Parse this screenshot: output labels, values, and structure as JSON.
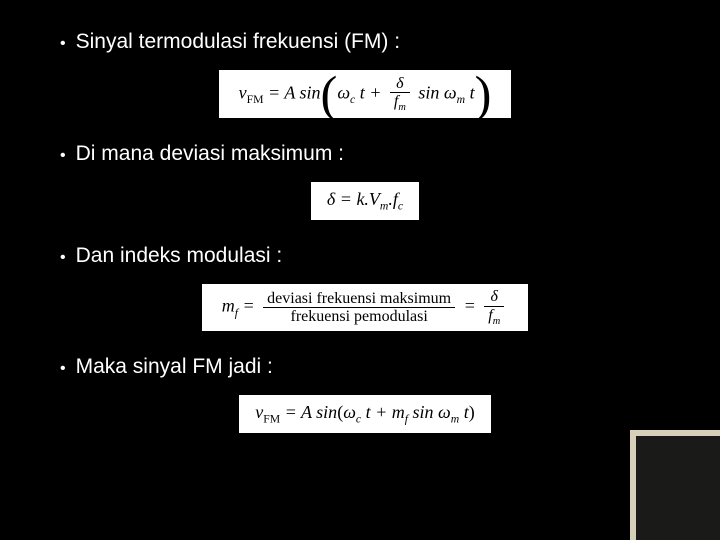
{
  "slide": {
    "background": "#000000",
    "text_color": "#ffffff",
    "bullet_font": "Comic Sans MS",
    "equation_bg": "#ffffff",
    "equation_color": "#000000",
    "bullets": {
      "b1": "Sinyal termodulasi frekuensi (FM) :",
      "b2": "Di mana deviasi maksimum :",
      "b3": "Dan indeks modulasi :",
      "b4": "Maka sinyal FM jadi :"
    },
    "equations": {
      "eq1": {
        "lhs_var": "v",
        "lhs_sub": "FM",
        "eq": " = ",
        "A": "A",
        "sin": " sin",
        "omega_c": "ω",
        "omega_c_sub": "c",
        "t": " t",
        "plus": " + ",
        "delta": "δ",
        "fm_var": "f",
        "fm_sub": "m",
        "sin2": " sin ",
        "omega_m": "ω",
        "omega_m_sub": "m",
        "t2": " t"
      },
      "eq2": {
        "delta": "δ",
        "eq": " = ",
        "k": "k.V",
        "k_sub": "m",
        "dot": ".",
        "f": "f",
        "f_sub": "c"
      },
      "eq3": {
        "m": "m",
        "m_sub": "f",
        "eq": " = ",
        "num_text": "deviasi frekuensi maksimum",
        "den_text": "frekuensi pemodulasi",
        "eq2": " = ",
        "delta": "δ",
        "fm_var": "f",
        "fm_sub": "m"
      },
      "eq4": {
        "lhs_var": "v",
        "lhs_sub": "FM",
        "eq": " = ",
        "A": "A",
        "sin": " sin",
        "omega_c": "ω",
        "omega_c_sub": "c",
        "t": " t",
        "plus": " + ",
        "mf": "m",
        "mf_sub": "f",
        "sin2": " sin ",
        "omega_m": "ω",
        "omega_m_sub": "m",
        "t2": " t"
      }
    }
  }
}
